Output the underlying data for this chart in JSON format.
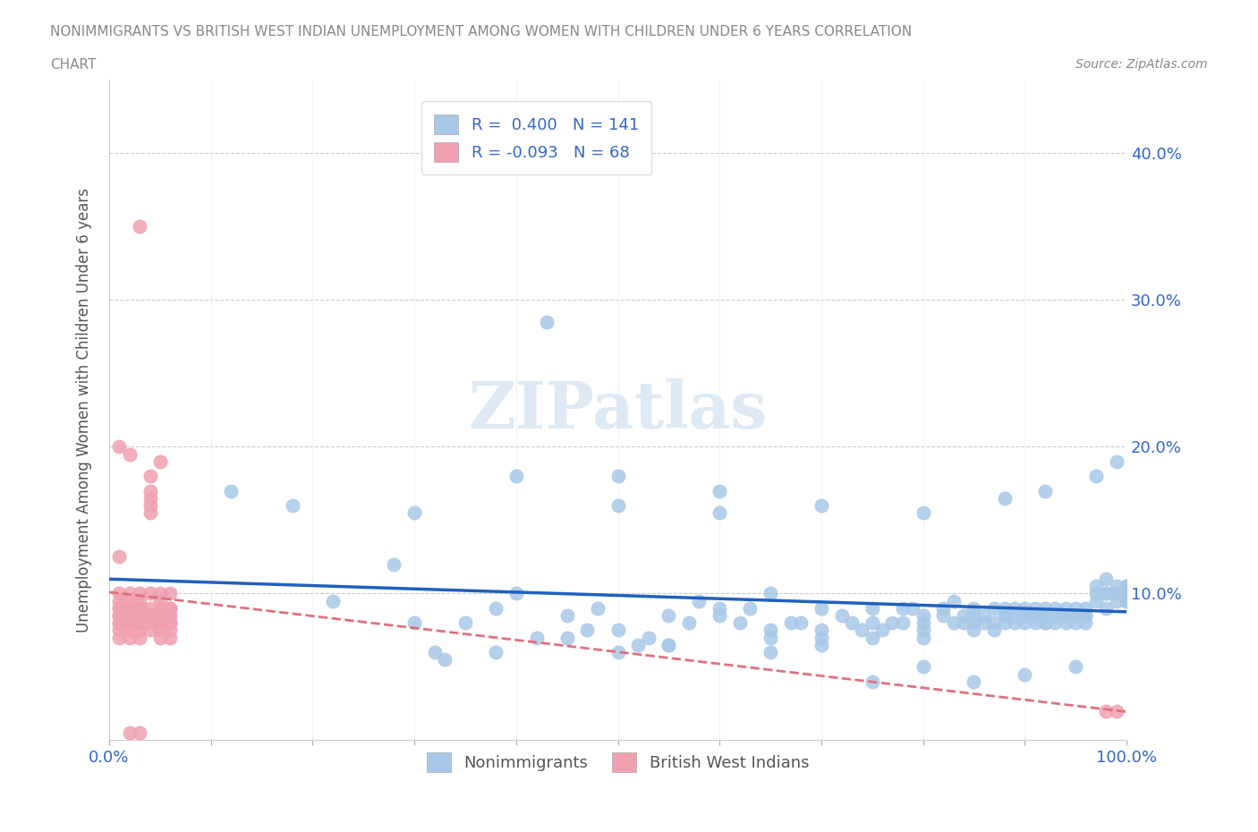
{
  "title_line1": "NONIMMIGRANTS VS BRITISH WEST INDIAN UNEMPLOYMENT AMONG WOMEN WITH CHILDREN UNDER 6 YEARS CORRELATION",
  "title_line2": "CHART",
  "source": "Source: ZipAtlas.com",
  "xlabel": "",
  "ylabel": "Unemployment Among Women with Children Under 6 years",
  "legend_label1": "Nonimmigrants",
  "legend_label2": "British West Indians",
  "r1": 0.4,
  "n1": 141,
  "r2": -0.093,
  "n2": 68,
  "blue_color": "#a8c8e8",
  "pink_color": "#f0a0b0",
  "blue_line_color": "#2060c0",
  "pink_line_color": "#e07080",
  "watermark": "ZIPatlas",
  "xlim": [
    0,
    1.0
  ],
  "ylim": [
    0,
    0.45
  ],
  "yticks": [
    0.0,
    0.1,
    0.2,
    0.3,
    0.4
  ],
  "ytick_labels": [
    "",
    "10.0%",
    "20.0%",
    "30.0%",
    "40.0%"
  ],
  "xticks": [
    0.0,
    0.1,
    0.2,
    0.3,
    0.4,
    0.5,
    0.6,
    0.7,
    0.8,
    0.9,
    1.0
  ],
  "xtick_labels": [
    "0.0%",
    "",
    "",
    "",
    "",
    "",
    "",
    "",
    "",
    "",
    "100.0%"
  ],
  "blue_scatter_x": [
    0.12,
    0.18,
    0.22,
    0.28,
    0.3,
    0.32,
    0.33,
    0.35,
    0.38,
    0.4,
    0.42,
    0.45,
    0.45,
    0.47,
    0.48,
    0.5,
    0.5,
    0.52,
    0.53,
    0.55,
    0.55,
    0.57,
    0.58,
    0.6,
    0.6,
    0.62,
    0.63,
    0.65,
    0.65,
    0.65,
    0.67,
    0.68,
    0.7,
    0.7,
    0.7,
    0.72,
    0.73,
    0.74,
    0.75,
    0.75,
    0.75,
    0.76,
    0.77,
    0.78,
    0.78,
    0.79,
    0.8,
    0.8,
    0.8,
    0.8,
    0.82,
    0.82,
    0.83,
    0.83,
    0.84,
    0.84,
    0.85,
    0.85,
    0.85,
    0.85,
    0.86,
    0.86,
    0.87,
    0.87,
    0.87,
    0.88,
    0.88,
    0.88,
    0.88,
    0.89,
    0.89,
    0.89,
    0.9,
    0.9,
    0.9,
    0.9,
    0.91,
    0.91,
    0.91,
    0.91,
    0.92,
    0.92,
    0.92,
    0.92,
    0.92,
    0.93,
    0.93,
    0.93,
    0.93,
    0.94,
    0.94,
    0.94,
    0.94,
    0.95,
    0.95,
    0.95,
    0.95,
    0.96,
    0.96,
    0.96,
    0.96,
    0.97,
    0.97,
    0.97,
    0.98,
    0.98,
    0.98,
    0.98,
    0.99,
    0.99,
    0.99,
    0.99,
    1.0,
    1.0,
    1.0,
    1.0,
    1.0,
    1.0,
    1.0,
    1.0,
    0.3,
    0.4,
    0.5,
    0.6,
    0.38,
    0.55,
    0.65,
    0.7,
    0.75,
    0.8,
    0.85,
    0.9,
    0.95,
    0.97,
    0.99,
    0.6,
    0.7,
    0.8,
    0.88,
    0.92,
    0.5,
    0.43
  ],
  "blue_scatter_y": [
    0.17,
    0.16,
    0.095,
    0.12,
    0.08,
    0.06,
    0.055,
    0.08,
    0.09,
    0.1,
    0.07,
    0.085,
    0.07,
    0.075,
    0.09,
    0.06,
    0.075,
    0.065,
    0.07,
    0.085,
    0.065,
    0.08,
    0.095,
    0.09,
    0.085,
    0.08,
    0.09,
    0.07,
    0.075,
    0.1,
    0.08,
    0.08,
    0.07,
    0.09,
    0.075,
    0.085,
    0.08,
    0.075,
    0.09,
    0.08,
    0.07,
    0.075,
    0.08,
    0.09,
    0.08,
    0.09,
    0.07,
    0.08,
    0.085,
    0.075,
    0.09,
    0.085,
    0.08,
    0.095,
    0.08,
    0.085,
    0.075,
    0.08,
    0.09,
    0.085,
    0.08,
    0.085,
    0.075,
    0.09,
    0.08,
    0.085,
    0.08,
    0.09,
    0.085,
    0.08,
    0.09,
    0.085,
    0.08,
    0.085,
    0.09,
    0.085,
    0.08,
    0.085,
    0.09,
    0.085,
    0.08,
    0.085,
    0.09,
    0.085,
    0.08,
    0.085,
    0.09,
    0.085,
    0.08,
    0.085,
    0.09,
    0.085,
    0.08,
    0.085,
    0.09,
    0.085,
    0.08,
    0.085,
    0.09,
    0.085,
    0.08,
    0.1,
    0.105,
    0.095,
    0.1,
    0.09,
    0.1,
    0.11,
    0.1,
    0.095,
    0.105,
    0.1,
    0.095,
    0.1,
    0.105,
    0.1,
    0.1,
    0.105,
    0.1,
    0.095,
    0.155,
    0.18,
    0.16,
    0.155,
    0.06,
    0.065,
    0.06,
    0.065,
    0.04,
    0.05,
    0.04,
    0.045,
    0.05,
    0.18,
    0.19,
    0.17,
    0.16,
    0.155,
    0.165,
    0.17,
    0.18,
    0.285
  ],
  "pink_scatter_x": [
    0.01,
    0.01,
    0.01,
    0.01,
    0.01,
    0.01,
    0.01,
    0.01,
    0.01,
    0.01,
    0.02,
    0.02,
    0.02,
    0.02,
    0.02,
    0.02,
    0.02,
    0.02,
    0.02,
    0.02,
    0.03,
    0.03,
    0.03,
    0.03,
    0.03,
    0.03,
    0.03,
    0.03,
    0.03,
    0.03,
    0.04,
    0.04,
    0.04,
    0.04,
    0.04,
    0.04,
    0.04,
    0.04,
    0.04,
    0.04,
    0.05,
    0.05,
    0.05,
    0.05,
    0.05,
    0.05,
    0.05,
    0.05,
    0.05,
    0.05,
    0.06,
    0.06,
    0.06,
    0.06,
    0.06,
    0.06,
    0.06,
    0.06,
    0.99,
    0.98,
    0.01,
    0.02,
    0.03,
    0.04,
    0.05,
    0.01,
    0.02,
    0.03
  ],
  "pink_scatter_y": [
    0.08,
    0.09,
    0.1,
    0.075,
    0.08,
    0.085,
    0.07,
    0.09,
    0.095,
    0.085,
    0.08,
    0.09,
    0.1,
    0.075,
    0.08,
    0.085,
    0.07,
    0.09,
    0.095,
    0.085,
    0.08,
    0.09,
    0.1,
    0.075,
    0.08,
    0.085,
    0.07,
    0.09,
    0.095,
    0.085,
    0.08,
    0.09,
    0.1,
    0.075,
    0.16,
    0.165,
    0.17,
    0.155,
    0.085,
    0.085,
    0.08,
    0.09,
    0.1,
    0.075,
    0.08,
    0.085,
    0.07,
    0.09,
    0.095,
    0.085,
    0.08,
    0.09,
    0.1,
    0.075,
    0.08,
    0.085,
    0.07,
    0.09,
    0.02,
    0.02,
    0.2,
    0.195,
    0.35,
    0.18,
    0.19,
    0.125,
    0.005,
    0.005
  ]
}
